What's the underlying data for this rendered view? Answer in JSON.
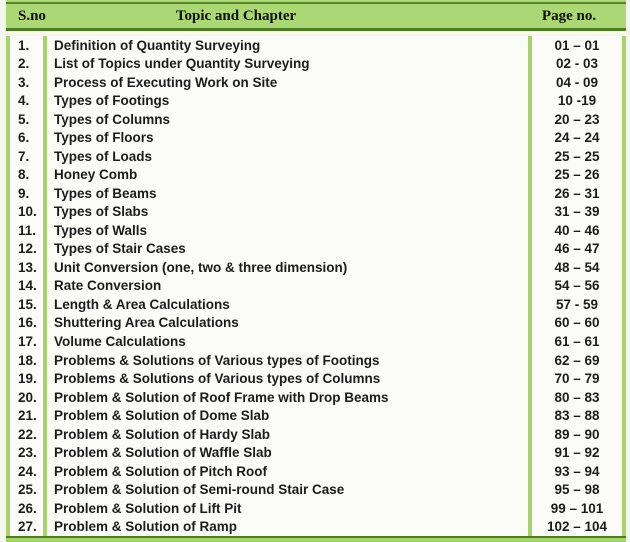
{
  "table": {
    "headers": {
      "sno": "S.no",
      "topic": "Topic and Chapter",
      "page": "Page no."
    },
    "rows": [
      {
        "sno": "1.",
        "topic": "Definition of Quantity Surveying",
        "pages": "01 – 01"
      },
      {
        "sno": "2.",
        "topic": "List of Topics under Quantity Surveying",
        "pages": "02 - 03"
      },
      {
        "sno": "3.",
        "topic": "Process of Executing Work on Site",
        "pages": "04 - 09"
      },
      {
        "sno": "4.",
        "topic": "Types of Footings",
        "pages": "10 -19"
      },
      {
        "sno": "5.",
        "topic": "Types of Columns",
        "pages": "20 – 23"
      },
      {
        "sno": "6.",
        "topic": "Types of Floors",
        "pages": "24 – 24"
      },
      {
        "sno": "7.",
        "topic": "Types of Loads",
        "pages": "25 – 25"
      },
      {
        "sno": "8.",
        "topic": "Honey Comb",
        "pages": "25 – 26"
      },
      {
        "sno": "9.",
        "topic": "Types of Beams",
        "pages": "26 – 31"
      },
      {
        "sno": "10.",
        "topic": "Types of Slabs",
        "pages": "31 – 39"
      },
      {
        "sno": "11.",
        "topic": "Types of Walls",
        "pages": "40 – 46"
      },
      {
        "sno": "12.",
        "topic": "Types of Stair Cases",
        "pages": "46 – 47"
      },
      {
        "sno": "13.",
        "topic": "Unit Conversion (one, two & three dimension)",
        "pages": "48 – 54"
      },
      {
        "sno": "14.",
        "topic": "Rate Conversion",
        "pages": "54 – 56"
      },
      {
        "sno": "15.",
        "topic": "Length & Area Calculations",
        "pages": "57 - 59"
      },
      {
        "sno": "16.",
        "topic": "Shuttering Area Calculations",
        "pages": "60 – 60"
      },
      {
        "sno": "17.",
        "topic": "Volume Calculations",
        "pages": "61 – 61"
      },
      {
        "sno": "18.",
        "topic": "Problems & Solutions of Various types of Footings",
        "pages": "62 – 69"
      },
      {
        "sno": "19.",
        "topic": "Problems & Solutions of Various types of Columns",
        "pages": "70 – 79"
      },
      {
        "sno": "20.",
        "topic": "Problem & Solution of Roof Frame with Drop Beams",
        "pages": "80 – 83"
      },
      {
        "sno": "21.",
        "topic": "Problem & Solution of Dome Slab",
        "pages": "83 – 88"
      },
      {
        "sno": "22.",
        "topic": "Problem & Solution of Hardy Slab",
        "pages": "89 – 90"
      },
      {
        "sno": "23.",
        "topic": "Problem & Solution of Waffle Slab",
        "pages": "91 – 92"
      },
      {
        "sno": "24.",
        "topic": "Problem & Solution of Pitch Roof",
        "pages": "93 – 94"
      },
      {
        "sno": "25.",
        "topic": "Problem & Solution of Semi-round Stair Case",
        "pages": "95 – 98"
      },
      {
        "sno": "26.",
        "topic": "Problem & Solution of Lift Pit",
        "pages": "99 – 101"
      },
      {
        "sno": "27.",
        "topic": "Problem & Solution of Ramp",
        "pages": "102 – 104"
      }
    ]
  },
  "colors": {
    "header_green": "#abd874",
    "bar_green": "#a6d46b",
    "rule_dark_green": "#4e7c25",
    "cell_background": "#fbfbf7",
    "page_background": "#f6f6f1",
    "text": "#1c1c1c"
  }
}
